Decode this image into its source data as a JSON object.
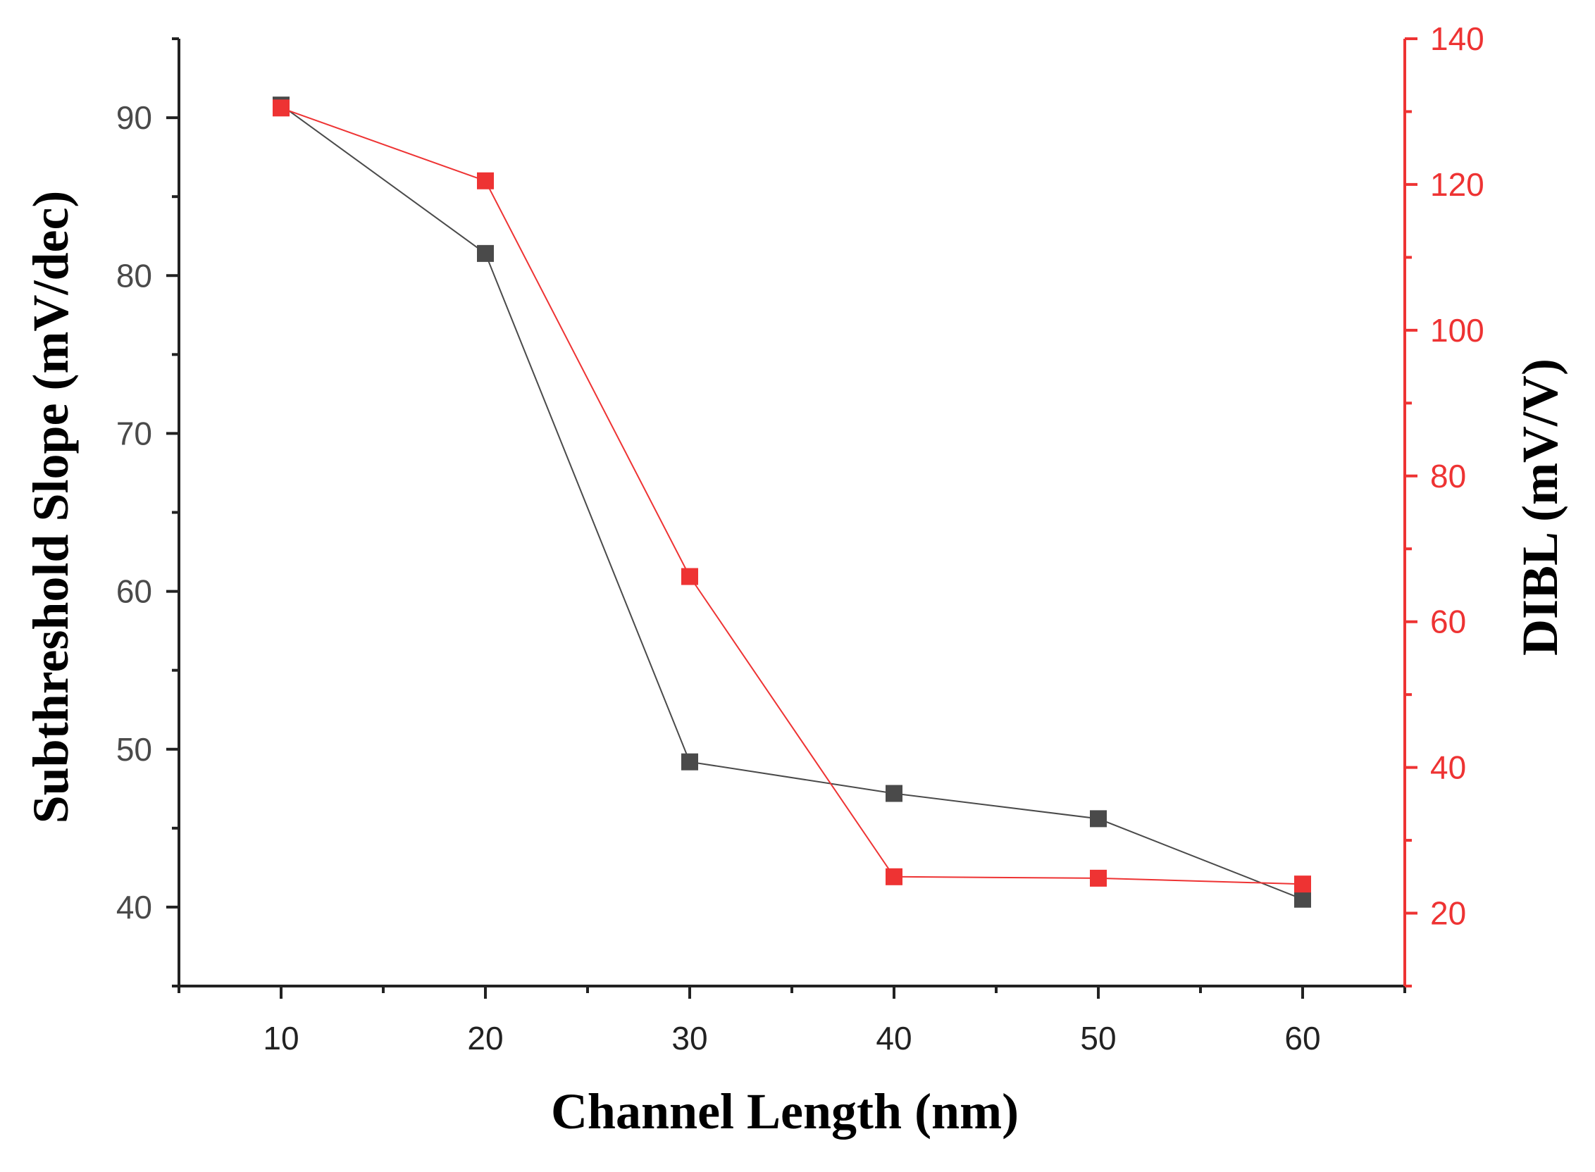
{
  "chart_data": {
    "type": "line",
    "xlabel": "Channel Length (nm)",
    "x_ticks": [
      "10",
      "20",
      "30",
      "40",
      "50",
      "60"
    ],
    "xlim": [
      5,
      65
    ],
    "y_left": {
      "label": "Subthreshold Slope (mV/dec)",
      "ticks": [
        "40",
        "50",
        "60",
        "70",
        "80",
        "90"
      ],
      "ylim": [
        35,
        95
      ],
      "color": "#4a4a4a"
    },
    "y_right": {
      "label": "DIBL (mV/V)",
      "ticks": [
        "20",
        "40",
        "60",
        "80",
        "100",
        "120",
        "140"
      ],
      "ylim": [
        10,
        140
      ],
      "color": "#ee3333"
    },
    "series": [
      {
        "axis": "left",
        "color": "#4a4a4a",
        "x": [
          10,
          20,
          30,
          40,
          50,
          60
        ],
        "values": [
          90.8,
          81.4,
          49.2,
          47.2,
          45.6,
          40.5
        ]
      },
      {
        "axis": "right",
        "color": "#ee3333",
        "x": [
          10,
          20,
          30,
          40,
          50,
          60
        ],
        "values": [
          130.5,
          120.5,
          66.2,
          25.0,
          24.8,
          24.0
        ]
      }
    ],
    "grid": false,
    "legend": "none"
  }
}
